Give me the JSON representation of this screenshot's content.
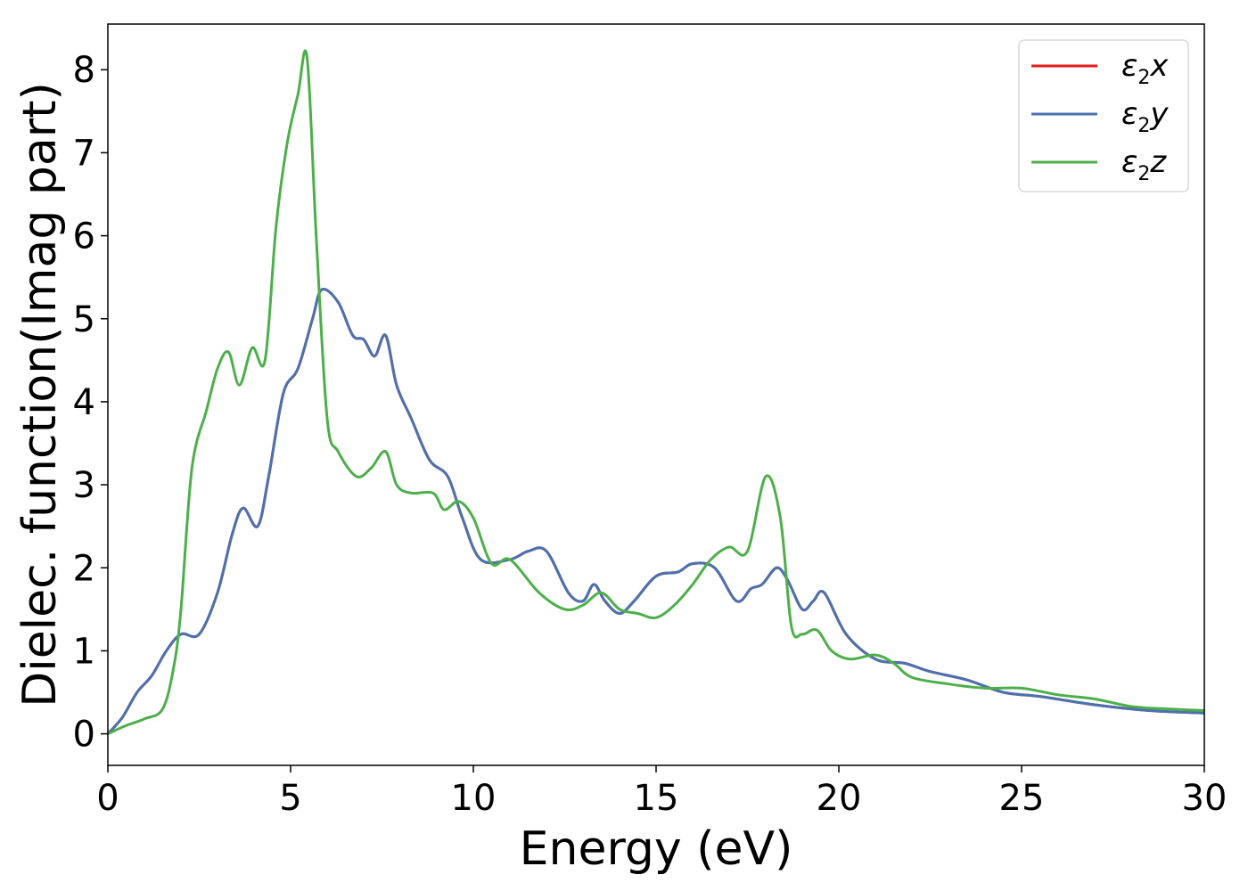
{
  "chart_data": {
    "type": "line",
    "xlabel": "Energy (eV)",
    "ylabel": "Dielec. function(Imag part)",
    "xlim": [
      0,
      30
    ],
    "ylim": [
      -0.38,
      8.55
    ],
    "x_ticks": [
      0,
      5,
      10,
      15,
      20,
      25,
      30
    ],
    "y_ticks": [
      0,
      1,
      2,
      3,
      4,
      5,
      6,
      7,
      8
    ],
    "grid": false,
    "legend_position": "top-right",
    "series": [
      {
        "name": "ε₂x",
        "legend_base": "ε",
        "legend_sub": "2",
        "legend_var": "x",
        "color": "#e41a1c",
        "x": [
          0,
          0.4,
          0.8,
          1.2,
          1.6,
          2.0,
          2.5,
          3.0,
          3.4,
          3.7,
          4.1,
          4.4,
          4.8,
          5.2,
          5.6,
          5.85,
          6.3,
          6.7,
          7.0,
          7.3,
          7.6,
          7.9,
          8.3,
          8.8,
          9.3,
          9.7,
          10.2,
          11.0,
          11.5,
          12.0,
          12.6,
          13.0,
          13.3,
          13.6,
          14.0,
          14.4,
          15.0,
          15.6,
          16.0,
          16.6,
          17.2,
          17.6,
          17.9,
          18.3,
          18.6,
          19.0,
          19.3,
          19.6,
          20.2,
          21.0,
          21.8,
          22.5,
          23.5,
          24.5,
          25.5,
          27.0,
          28.5,
          30.0
        ],
        "y": [
          0.0,
          0.2,
          0.5,
          0.7,
          1.0,
          1.2,
          1.2,
          1.7,
          2.4,
          2.72,
          2.5,
          3.1,
          4.1,
          4.4,
          5.0,
          5.35,
          5.2,
          4.8,
          4.75,
          4.55,
          4.8,
          4.2,
          3.8,
          3.3,
          3.1,
          2.6,
          2.1,
          2.1,
          2.2,
          2.2,
          1.7,
          1.6,
          1.8,
          1.6,
          1.45,
          1.6,
          1.9,
          1.95,
          2.05,
          2.0,
          1.6,
          1.75,
          1.8,
          2.0,
          1.85,
          1.5,
          1.6,
          1.7,
          1.2,
          0.9,
          0.85,
          0.75,
          0.65,
          0.5,
          0.45,
          0.35,
          0.28,
          0.25
        ]
      },
      {
        "name": "ε₂y",
        "legend_base": "ε",
        "legend_sub": "2",
        "legend_var": "y",
        "color": "#4a72b0",
        "x": [
          0,
          0.4,
          0.8,
          1.2,
          1.6,
          2.0,
          2.5,
          3.0,
          3.4,
          3.7,
          4.1,
          4.4,
          4.8,
          5.2,
          5.6,
          5.85,
          6.3,
          6.7,
          7.0,
          7.3,
          7.6,
          7.9,
          8.3,
          8.8,
          9.3,
          9.7,
          10.2,
          11.0,
          11.5,
          12.0,
          12.6,
          13.0,
          13.3,
          13.6,
          14.0,
          14.4,
          15.0,
          15.6,
          16.0,
          16.6,
          17.2,
          17.6,
          17.9,
          18.3,
          18.6,
          19.0,
          19.3,
          19.6,
          20.2,
          21.0,
          21.8,
          22.5,
          23.5,
          24.5,
          25.5,
          27.0,
          28.5,
          30.0
        ],
        "y": [
          0.0,
          0.2,
          0.5,
          0.7,
          1.0,
          1.2,
          1.2,
          1.7,
          2.4,
          2.72,
          2.5,
          3.1,
          4.1,
          4.4,
          5.0,
          5.35,
          5.2,
          4.8,
          4.75,
          4.55,
          4.8,
          4.2,
          3.8,
          3.3,
          3.1,
          2.6,
          2.1,
          2.1,
          2.2,
          2.2,
          1.7,
          1.6,
          1.8,
          1.6,
          1.45,
          1.6,
          1.9,
          1.95,
          2.05,
          2.0,
          1.6,
          1.75,
          1.8,
          2.0,
          1.85,
          1.5,
          1.6,
          1.7,
          1.2,
          0.9,
          0.85,
          0.75,
          0.65,
          0.5,
          0.45,
          0.35,
          0.28,
          0.25
        ]
      },
      {
        "name": "ε₂z",
        "legend_base": "ε",
        "legend_sub": "2",
        "legend_var": "z",
        "color": "#4daf4a",
        "x": [
          0,
          0.5,
          1.0,
          1.5,
          1.8,
          2.0,
          2.3,
          2.7,
          3.0,
          3.3,
          3.6,
          3.95,
          4.3,
          4.6,
          4.9,
          5.2,
          5.45,
          5.7,
          6.0,
          6.3,
          6.8,
          7.2,
          7.6,
          7.9,
          8.3,
          8.9,
          9.2,
          9.6,
          10.0,
          10.5,
          11.0,
          11.8,
          12.5,
          13.0,
          13.5,
          14.0,
          14.5,
          15.0,
          15.5,
          16.0,
          16.5,
          17.0,
          17.5,
          18.0,
          18.4,
          18.7,
          19.0,
          19.4,
          19.8,
          20.3,
          21.0,
          21.5,
          22.0,
          23.0,
          24.0,
          25.0,
          26.0,
          27.0,
          28.0,
          29.0,
          30.0
        ],
        "y": [
          0.0,
          0.1,
          0.18,
          0.3,
          0.8,
          1.5,
          3.2,
          3.9,
          4.4,
          4.6,
          4.2,
          4.65,
          4.5,
          6.1,
          7.1,
          7.7,
          8.15,
          6.0,
          3.8,
          3.4,
          3.1,
          3.2,
          3.4,
          3.0,
          2.9,
          2.9,
          2.7,
          2.8,
          2.6,
          2.05,
          2.1,
          1.7,
          1.5,
          1.55,
          1.7,
          1.5,
          1.45,
          1.4,
          1.55,
          1.8,
          2.1,
          2.25,
          2.2,
          3.1,
          2.6,
          1.3,
          1.2,
          1.25,
          1.0,
          0.9,
          0.95,
          0.85,
          0.68,
          0.6,
          0.55,
          0.55,
          0.47,
          0.42,
          0.33,
          0.3,
          0.28
        ]
      }
    ]
  }
}
